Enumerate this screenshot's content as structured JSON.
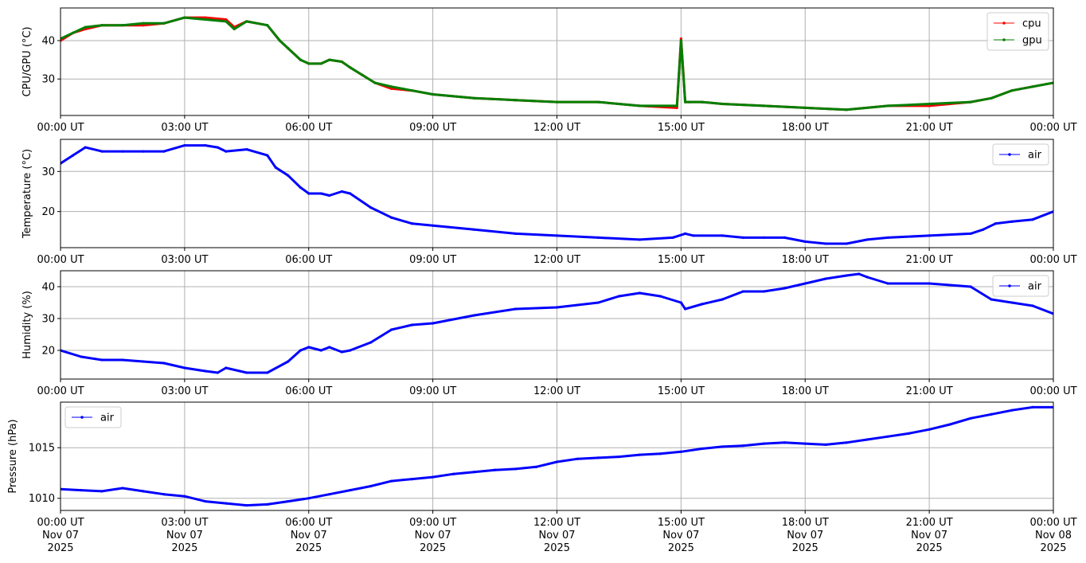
{
  "chart_data": [
    {
      "type": "line",
      "ylabel": "CPU/GPU (°C)",
      "xlabel": "",
      "title": "",
      "xlim": [
        0,
        24
      ],
      "ylim": [
        20.5,
        48.5
      ],
      "yticks": [
        30,
        40
      ],
      "xticks": [
        0,
        3,
        6,
        9,
        12,
        15,
        18,
        21,
        24
      ],
      "xtick_labels": [
        "00:00 UT",
        "03:00 UT",
        "06:00 UT",
        "09:00 UT",
        "12:00 UT",
        "15:00 UT",
        "18:00 UT",
        "21:00 UT",
        "00:00 UT"
      ],
      "grid": true,
      "legend": "top-right",
      "series": [
        {
          "name": "cpu",
          "color": "#ff0000",
          "x": [
            0,
            0.3,
            0.6,
            1.0,
            1.5,
            2.0,
            2.5,
            3.0,
            3.5,
            4.0,
            4.2,
            4.5,
            5.0,
            5.3,
            5.5,
            5.8,
            6.0,
            6.3,
            6.5,
            6.8,
            7.0,
            7.3,
            7.6,
            8.0,
            8.5,
            9.0,
            10,
            11,
            12,
            13,
            14,
            14.9,
            15.0,
            15.1,
            15.2,
            15.5,
            16,
            17,
            18,
            19,
            20,
            21,
            22,
            22.5,
            23,
            23.5,
            24
          ],
          "values": [
            40,
            42,
            43,
            44,
            44,
            44,
            44.5,
            46,
            46,
            45.5,
            43.5,
            45,
            44,
            40,
            38,
            35,
            34,
            34,
            35,
            34.5,
            33,
            31,
            29,
            27.5,
            27,
            26,
            25,
            24.5,
            24,
            24,
            23,
            22.5,
            40.5,
            24,
            24,
            24,
            23.5,
            23,
            22.5,
            22,
            23,
            23,
            24,
            25,
            27,
            28,
            29
          ]
        },
        {
          "name": "gpu",
          "color": "#008000",
          "x": [
            0,
            0.3,
            0.6,
            1.0,
            1.5,
            2.0,
            2.5,
            3.0,
            3.5,
            4.0,
            4.2,
            4.5,
            5.0,
            5.3,
            5.5,
            5.8,
            6.0,
            6.3,
            6.5,
            6.8,
            7.0,
            7.3,
            7.6,
            8.0,
            8.5,
            9.0,
            10,
            11,
            12,
            13,
            14,
            14.9,
            15.0,
            15.1,
            15.2,
            15.5,
            16,
            17,
            18,
            19,
            20,
            21,
            22,
            22.5,
            23,
            23.5,
            24
          ],
          "values": [
            40.5,
            42,
            43.5,
            44,
            44,
            44.5,
            44.5,
            46,
            45.5,
            45,
            43,
            45,
            44,
            40,
            38,
            35,
            34,
            34,
            35,
            34.5,
            33,
            31,
            29,
            28,
            27,
            26,
            25,
            24.5,
            24,
            24,
            23,
            23,
            40,
            24,
            24,
            24,
            23.5,
            23,
            22.5,
            22,
            23,
            23.5,
            24,
            25,
            27,
            28,
            29
          ]
        }
      ]
    },
    {
      "type": "line",
      "ylabel": "Temperature (°C)",
      "xlabel": "",
      "title": "",
      "xlim": [
        0,
        24
      ],
      "ylim": [
        11,
        38
      ],
      "yticks": [
        20,
        30
      ],
      "xticks": [
        0,
        3,
        6,
        9,
        12,
        15,
        18,
        21,
        24
      ],
      "xtick_labels": [
        "00:00 UT",
        "03:00 UT",
        "06:00 UT",
        "09:00 UT",
        "12:00 UT",
        "15:00 UT",
        "18:00 UT",
        "21:00 UT",
        "00:00 UT"
      ],
      "grid": true,
      "legend": "top-right",
      "series": [
        {
          "name": "air",
          "color": "#0000ff",
          "x": [
            0,
            0.3,
            0.6,
            1.0,
            1.5,
            2.0,
            2.5,
            3.0,
            3.5,
            3.8,
            4.0,
            4.5,
            5.0,
            5.2,
            5.5,
            5.8,
            6.0,
            6.3,
            6.5,
            6.8,
            7.0,
            7.5,
            8.0,
            8.5,
            9.0,
            10,
            11,
            12,
            13,
            14,
            14.8,
            15.1,
            15.3,
            16,
            16.5,
            17,
            17.5,
            18,
            18.5,
            19,
            19.5,
            20,
            21,
            22,
            22.3,
            22.6,
            23,
            23.5,
            24
          ],
          "values": [
            32,
            34,
            36,
            35,
            35,
            35,
            35,
            36.5,
            36.5,
            36,
            35,
            35.5,
            34,
            31,
            29,
            26,
            24.5,
            24.5,
            24,
            25,
            24.5,
            21,
            18.5,
            17,
            16.5,
            15.5,
            14.5,
            14,
            13.5,
            13,
            13.5,
            14.5,
            14,
            14,
            13.5,
            13.5,
            13.5,
            12.5,
            12,
            12,
            13,
            13.5,
            14,
            14.5,
            15.5,
            17,
            17.5,
            18,
            20
          ]
        }
      ]
    },
    {
      "type": "line",
      "ylabel": "Humidity (%)",
      "xlabel": "",
      "title": "",
      "xlim": [
        0,
        24
      ],
      "ylim": [
        11,
        45
      ],
      "yticks": [
        20,
        30,
        40
      ],
      "xticks": [
        0,
        3,
        6,
        9,
        12,
        15,
        18,
        21,
        24
      ],
      "xtick_labels": [
        "00:00 UT",
        "03:00 UT",
        "06:00 UT",
        "09:00 UT",
        "12:00 UT",
        "15:00 UT",
        "18:00 UT",
        "21:00 UT",
        "00:00 UT"
      ],
      "grid": true,
      "legend": "top-right",
      "series": [
        {
          "name": "air",
          "color": "#0000ff",
          "x": [
            0,
            0.5,
            1.0,
            1.5,
            2.0,
            2.5,
            3.0,
            3.5,
            3.8,
            4.0,
            4.5,
            5.0,
            5.5,
            5.8,
            6.0,
            6.3,
            6.5,
            6.8,
            7.0,
            7.5,
            8.0,
            8.5,
            9.0,
            10,
            11,
            12,
            13,
            13.5,
            14,
            14.5,
            15.0,
            15.1,
            15.5,
            16,
            16.5,
            17,
            17.5,
            18,
            18.5,
            19,
            19.3,
            19.5,
            20,
            21,
            22,
            22.5,
            23,
            23.5,
            24
          ],
          "values": [
            20,
            18,
            17,
            17,
            16.5,
            16,
            14.5,
            13.5,
            13,
            14.5,
            13,
            13,
            16.5,
            20,
            21,
            20,
            21,
            19.5,
            20,
            22.5,
            26.5,
            28,
            28.5,
            31,
            33,
            33.5,
            35,
            37,
            38,
            37,
            35,
            33,
            34.5,
            36,
            38.5,
            38.5,
            39.5,
            41,
            42.5,
            43.5,
            44,
            43,
            41,
            41,
            40,
            36,
            35,
            34,
            31.5
          ]
        }
      ]
    },
    {
      "type": "line",
      "ylabel": "Pressure (hPa)",
      "xlabel": "",
      "title": "",
      "xlim": [
        0,
        24
      ],
      "ylim": [
        1008.8,
        1019.5
      ],
      "yticks": [
        1010,
        1015
      ],
      "xticks": [
        0,
        3,
        6,
        9,
        12,
        15,
        18,
        21,
        24
      ],
      "xtick_labels": [
        "00:00 UT",
        "03:00 UT",
        "06:00 UT",
        "09:00 UT",
        "12:00 UT",
        "15:00 UT",
        "18:00 UT",
        "21:00 UT",
        "00:00 UT"
      ],
      "xtick_dates": [
        "Nov 07",
        "Nov 07",
        "Nov 07",
        "Nov 07",
        "Nov 07",
        "Nov 07",
        "Nov 07",
        "Nov 07",
        "Nov 08"
      ],
      "xtick_years": [
        "2025",
        "2025",
        "2025",
        "2025",
        "2025",
        "2025",
        "2025",
        "2025",
        "2025"
      ],
      "grid": true,
      "legend": "top-left",
      "series": [
        {
          "name": "air",
          "color": "#0000ff",
          "x": [
            0,
            0.5,
            1.0,
            1.5,
            2.0,
            2.5,
            3.0,
            3.5,
            4.0,
            4.5,
            5.0,
            5.5,
            6.0,
            6.5,
            7.0,
            7.5,
            8.0,
            8.5,
            9.0,
            9.5,
            10,
            10.5,
            11,
            11.5,
            12,
            12.5,
            13,
            13.5,
            14,
            14.5,
            15,
            15.5,
            16,
            16.5,
            17,
            17.5,
            18,
            18.5,
            19,
            19.5,
            20,
            20.5,
            21,
            21.5,
            22,
            22.5,
            23,
            23.5,
            24
          ],
          "values": [
            1010.9,
            1010.8,
            1010.7,
            1011.0,
            1010.7,
            1010.4,
            1010.2,
            1009.7,
            1009.5,
            1009.3,
            1009.4,
            1009.7,
            1010.0,
            1010.4,
            1010.8,
            1011.2,
            1011.7,
            1011.9,
            1012.1,
            1012.4,
            1012.6,
            1012.8,
            1012.9,
            1013.1,
            1013.6,
            1013.9,
            1014.0,
            1014.1,
            1014.3,
            1014.4,
            1014.6,
            1014.9,
            1015.1,
            1015.2,
            1015.4,
            1015.5,
            1015.4,
            1015.3,
            1015.5,
            1015.8,
            1016.1,
            1016.4,
            1016.8,
            1017.3,
            1017.9,
            1018.3,
            1018.7,
            1019.0,
            1019.0
          ]
        }
      ]
    }
  ]
}
